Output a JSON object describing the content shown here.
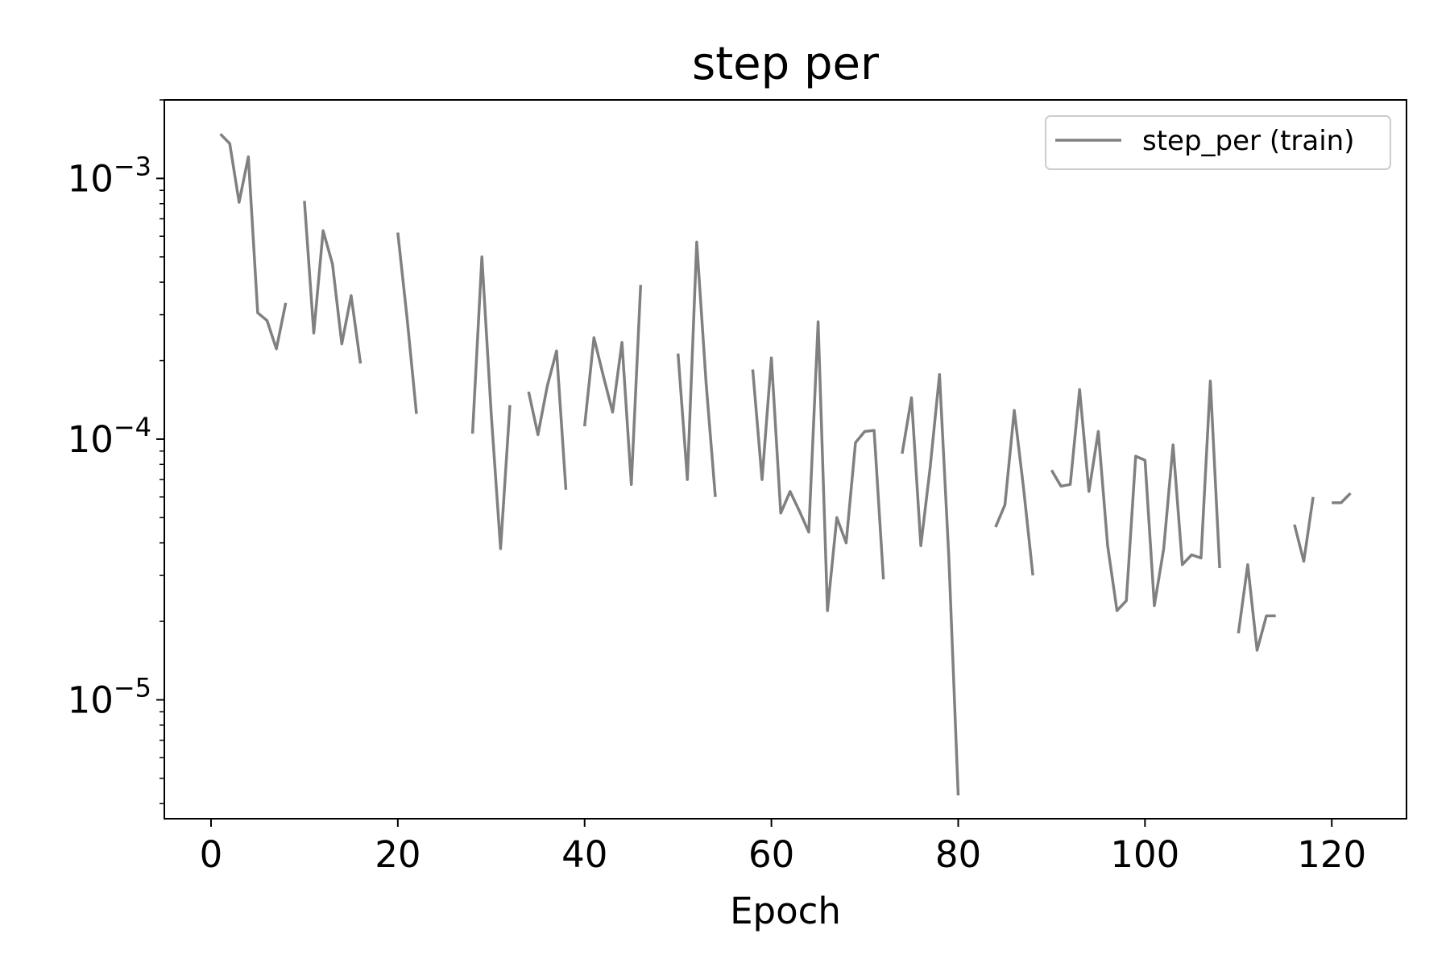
{
  "chart_data": {
    "type": "line",
    "title": "step per",
    "xlabel": "Epoch",
    "ylabel": "",
    "yscale": "log",
    "xlim": [
      -5,
      128
    ],
    "ylim": [
      3.5e-06,
      0.002
    ],
    "x_ticks": [
      0,
      20,
      40,
      60,
      80,
      100,
      120
    ],
    "y_ticks": [
      {
        "value": 1e-05,
        "base": "10",
        "exp": "−5"
      },
      {
        "value": 0.0001,
        "base": "10",
        "exp": "−4"
      },
      {
        "value": 0.001,
        "base": "10",
        "exp": "−3"
      }
    ],
    "grid": false,
    "legend": "top-right",
    "series": [
      {
        "name": "step_per (train)",
        "color": "#808080",
        "segments": [
          [
            [
              1,
              0.00148
            ],
            [
              2,
              0.00136
            ],
            [
              3,
              0.00081
            ],
            [
              4,
              0.00121
            ],
            [
              5,
              0.000305
            ],
            [
              6,
              0.000285
            ],
            [
              7,
              0.000222
            ],
            [
              8,
              0.000333
            ]
          ],
          [
            [
              10,
              0.00082
            ],
            [
              11,
              0.000255
            ],
            [
              12,
              0.00063
            ],
            [
              13,
              0.00047
            ],
            [
              14,
              0.000232
            ],
            [
              15,
              0.000355
            ],
            [
              16,
              0.000195
            ]
          ],
          [
            [
              20,
              0.00062
            ],
            [
              21,
              0.00029
            ],
            [
              22,
              0.000125
            ]
          ],
          [
            [
              28,
              0.000105
            ],
            [
              29,
              0.0005
            ],
            [
              30,
              0.000125
            ],
            [
              31,
              3.8e-05
            ],
            [
              32,
              0.000135
            ]
          ],
          [
            [
              34,
              0.000152
            ],
            [
              35,
              0.000104
            ],
            [
              36,
              0.00016
            ],
            [
              37,
              0.000218
            ],
            [
              38,
              6.4e-05
            ]
          ],
          [
            [
              40,
              0.000112
            ],
            [
              41,
              0.000245
            ],
            [
              42,
              0.000175
            ],
            [
              43,
              0.000127
            ],
            [
              44,
              0.000235
            ],
            [
              45,
              6.7e-05
            ],
            [
              46,
              0.00039
            ]
          ],
          [
            [
              50,
              0.000213
            ],
            [
              51,
              7e-05
            ],
            [
              52,
              0.00057
            ],
            [
              53,
              0.000165
            ],
            [
              54,
              6e-05
            ]
          ],
          [
            [
              58,
              0.000185
            ],
            [
              59,
              7e-05
            ],
            [
              60,
              0.000205
            ],
            [
              61,
              5.2e-05
            ],
            [
              62,
              6.3e-05
            ],
            [
              63,
              5.3e-05
            ],
            [
              64,
              4.4e-05
            ],
            [
              65,
              0.000282
            ],
            [
              66,
              2.2e-05
            ],
            [
              67,
              5e-05
            ],
            [
              68,
              4e-05
            ],
            [
              69,
              9.7e-05
            ],
            [
              70,
              0.000107
            ],
            [
              71,
              0.000108
            ],
            [
              72,
              2.9e-05
            ]
          ],
          [
            [
              74,
              8.8e-05
            ],
            [
              75,
              0.000144
            ],
            [
              76,
              3.9e-05
            ],
            [
              77,
              7.8e-05
            ],
            [
              78,
              0.000177
            ],
            [
              79,
              3.5e-05
            ],
            [
              80,
              4.3e-06
            ]
          ],
          [
            [
              84,
              4.6e-05
            ],
            [
              85,
              5.6e-05
            ],
            [
              86,
              0.000129
            ],
            [
              87,
              6.5e-05
            ],
            [
              88,
              3e-05
            ]
          ],
          [
            [
              90,
              7.6e-05
            ],
            [
              91,
              6.6e-05
            ],
            [
              92,
              6.7e-05
            ],
            [
              93,
              0.000155
            ],
            [
              94,
              6.3e-05
            ],
            [
              95,
              0.000107
            ],
            [
              96,
              3.9e-05
            ],
            [
              97,
              2.2e-05
            ],
            [
              98,
              2.4e-05
            ],
            [
              99,
              8.6e-05
            ],
            [
              100,
              8.3e-05
            ],
            [
              101,
              2.3e-05
            ],
            [
              102,
              3.8e-05
            ],
            [
              103,
              9.5e-05
            ],
            [
              104,
              3.3e-05
            ],
            [
              105,
              3.6e-05
            ],
            [
              106,
              3.5e-05
            ],
            [
              107,
              0.000167
            ],
            [
              108,
              3.2e-05
            ]
          ],
          [
            [
              110,
              1.8e-05
            ],
            [
              111,
              3.3e-05
            ],
            [
              112,
              1.55e-05
            ],
            [
              113,
              2.1e-05
            ],
            [
              114,
              2.1e-05
            ]
          ],
          [
            [
              116,
              4.7e-05
            ],
            [
              117,
              3.4e-05
            ],
            [
              118,
              6e-05
            ]
          ],
          [
            [
              120,
              5.7e-05
            ],
            [
              121,
              5.7e-05
            ],
            [
              122,
              6.2e-05
            ]
          ]
        ]
      }
    ]
  }
}
